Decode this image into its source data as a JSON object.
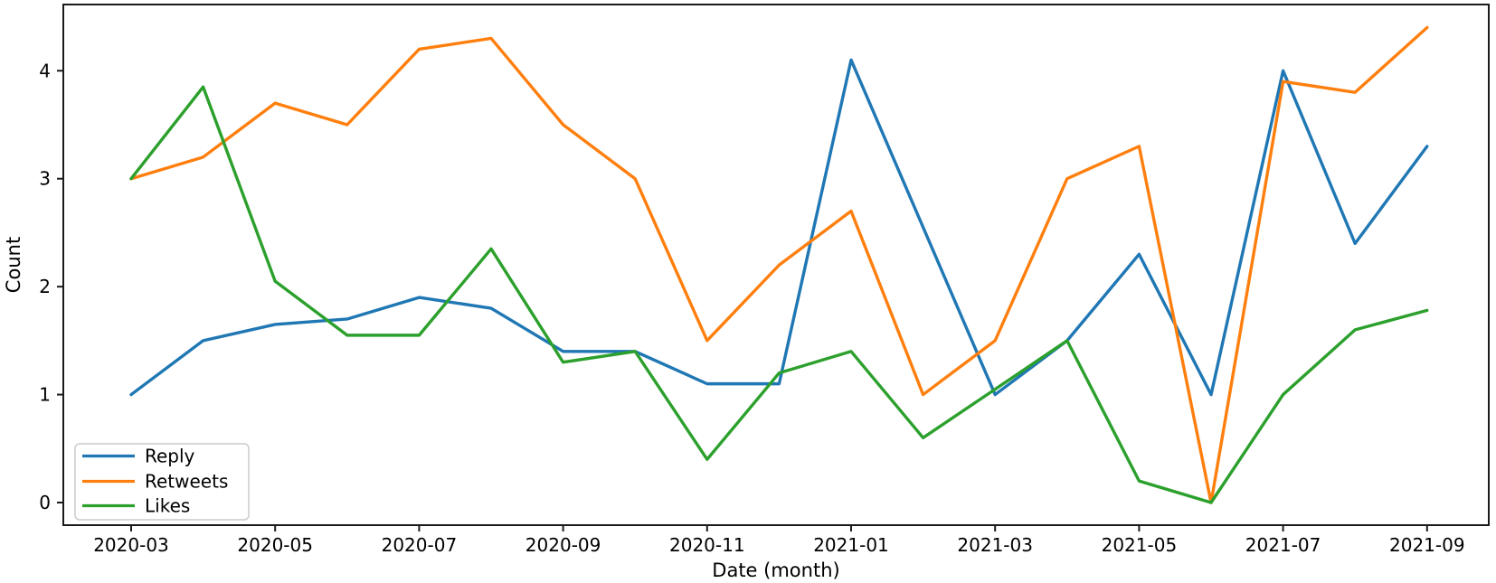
{
  "figure": {
    "background": "#ffffff",
    "text_color": "#000000",
    "spine_color": "#1a1a1a"
  },
  "chart_data": {
    "type": "line",
    "title": "",
    "xlabel": "Date (month)",
    "ylabel": "Count",
    "x": [
      "2020-03",
      "2020-04",
      "2020-05",
      "2020-06",
      "2020-07",
      "2020-08",
      "2020-09",
      "2020-10",
      "2020-11",
      "2020-12",
      "2021-01",
      "2021-02",
      "2021-03",
      "2021-04",
      "2021-05",
      "2021-06",
      "2021-07",
      "2021-08",
      "2021-09"
    ],
    "x_tick_labels": [
      "2020-03",
      "2020-05",
      "2020-07",
      "2020-09",
      "2020-11",
      "2021-01",
      "2021-03",
      "2021-05",
      "2021-07",
      "2021-09"
    ],
    "y_ticks": [
      0,
      1,
      2,
      3,
      4
    ],
    "ylim": [
      -0.22,
      4.62
    ],
    "grid": false,
    "legend_position": "lower left",
    "series": [
      {
        "name": "Reply",
        "color": "#1f77b4",
        "values": [
          1.0,
          1.5,
          1.65,
          1.7,
          1.9,
          1.8,
          1.4,
          1.4,
          1.1,
          1.1,
          4.1,
          2.55,
          1.0,
          1.5,
          2.3,
          1.0,
          4.0,
          2.4,
          3.3
        ]
      },
      {
        "name": "Retweets",
        "color": "#ff7f0e",
        "values": [
          3.0,
          3.2,
          3.7,
          3.5,
          4.2,
          4.3,
          3.5,
          3.0,
          1.5,
          2.2,
          2.7,
          1.0,
          1.5,
          3.0,
          3.3,
          0.0,
          3.9,
          3.8,
          4.4
        ]
      },
      {
        "name": "Likes",
        "color": "#2ca02c",
        "values": [
          3.0,
          3.85,
          2.05,
          1.55,
          1.55,
          2.35,
          1.3,
          1.4,
          0.4,
          1.2,
          1.4,
          0.6,
          1.05,
          1.5,
          0.2,
          0.0,
          1.0,
          1.6,
          1.78
        ]
      }
    ]
  }
}
